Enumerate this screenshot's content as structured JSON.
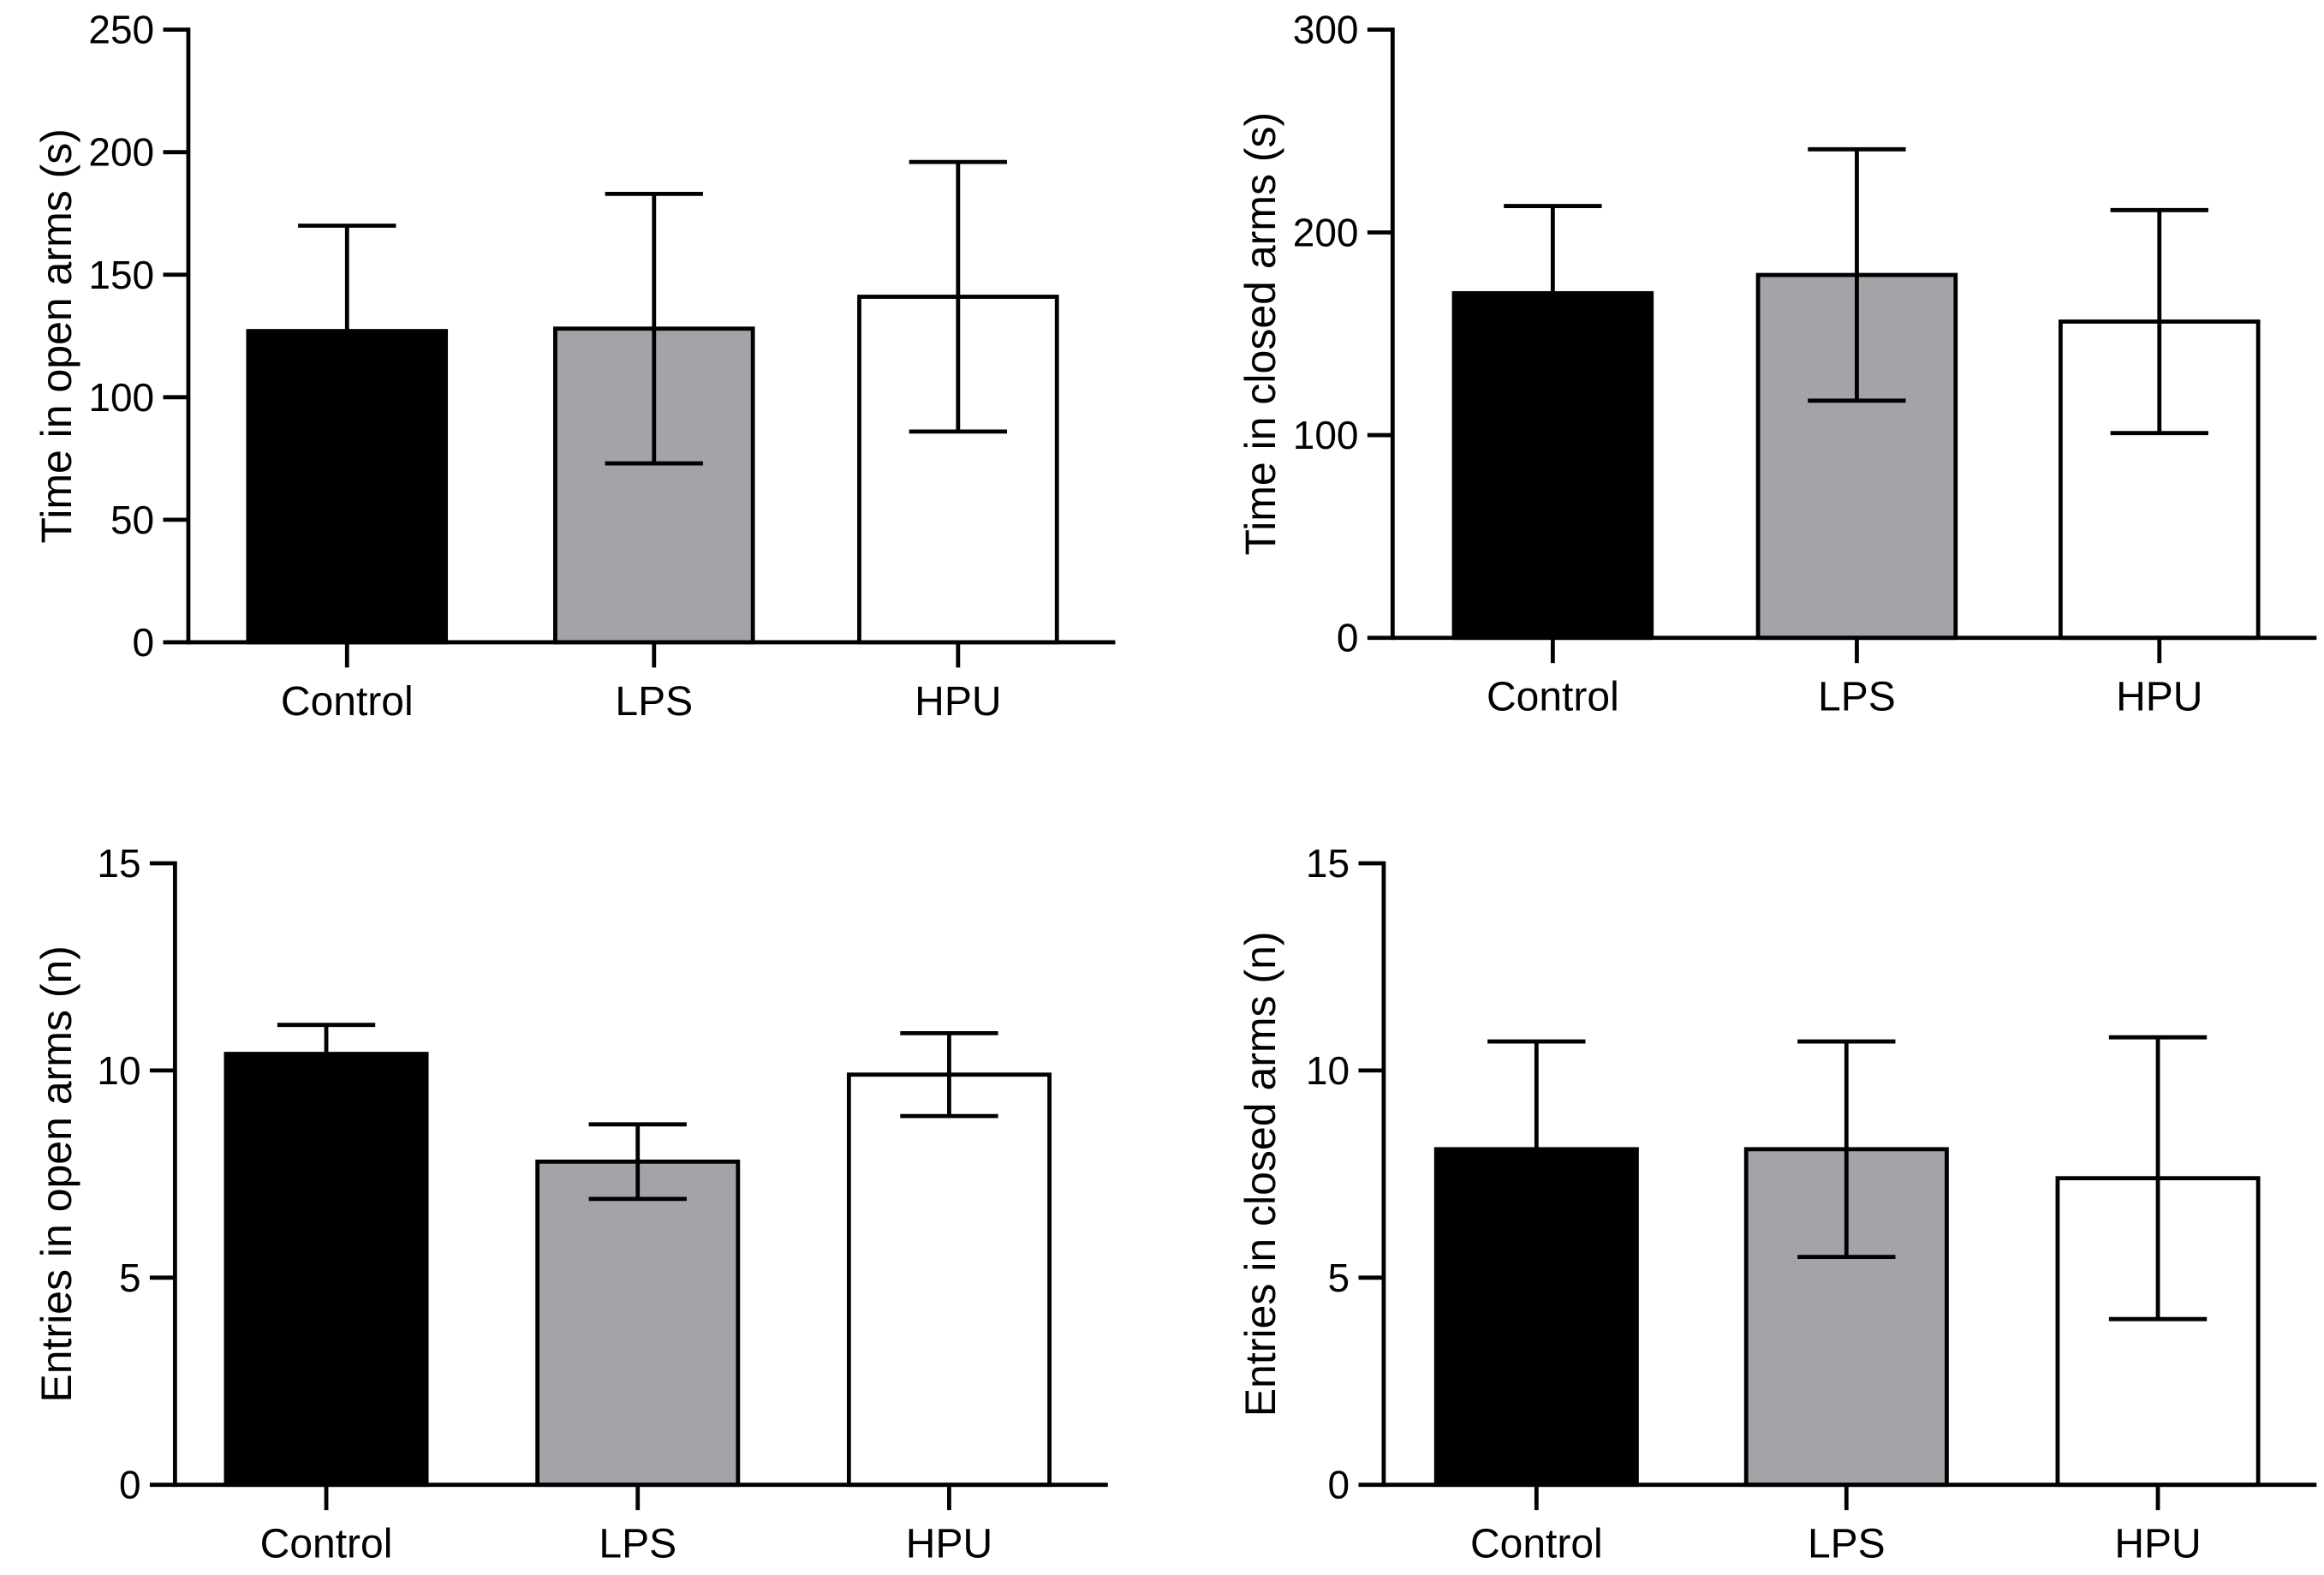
{
  "chart_data": [
    {
      "type": "bar",
      "categories": [
        "Control",
        "LPS",
        "HPU"
      ],
      "values": [
        127,
        128,
        141
      ],
      "errors": [
        43,
        55,
        55
      ],
      "ylabel": "Time in open arms (s)",
      "xlabel": "",
      "ylim": [
        0,
        250
      ],
      "yticks": [
        "0",
        "50",
        "100",
        "150",
        "200",
        "250"
      ],
      "fill_colors": [
        "#000000",
        "#a3a4a8",
        "#ffffff"
      ],
      "grid": false
    },
    {
      "type": "bar",
      "categories": [
        "Control",
        "LPS",
        "HPU"
      ],
      "values": [
        170,
        179,
        156
      ],
      "errors": [
        43,
        62,
        55
      ],
      "ylabel": "Time in closed arms (s)",
      "xlabel": "",
      "ylim": [
        0,
        300
      ],
      "yticks": [
        "0",
        "100",
        "200",
        "300"
      ],
      "fill_colors": [
        "#000000",
        "#a3a4a8",
        "#ffffff"
      ],
      "grid": false
    },
    {
      "type": "bar",
      "categories": [
        "Control",
        "LPS",
        "HPU"
      ],
      "values": [
        10.4,
        7.8,
        9.9
      ],
      "errors": [
        0.7,
        0.9,
        1.0
      ],
      "ylabel": "Entries in open arms (n)",
      "xlabel": "",
      "ylim": [
        0,
        15
      ],
      "yticks": [
        "0",
        "5",
        "10",
        "15"
      ],
      "fill_colors": [
        "#000000",
        "#a3a4a8",
        "#ffffff"
      ],
      "grid": false
    },
    {
      "type": "bar",
      "categories": [
        "Control",
        "LPS",
        "HPU"
      ],
      "values": [
        8.1,
        8.1,
        7.4
      ],
      "errors": [
        2.6,
        2.6,
        3.4
      ],
      "ylabel": "Entries in closed arms (n)",
      "xlabel": "",
      "ylim": [
        0,
        15
      ],
      "yticks": [
        "0",
        "5",
        "10",
        "15"
      ],
      "fill_colors": [
        "#000000",
        "#a3a4a8",
        "#ffffff"
      ],
      "grid": false
    }
  ]
}
